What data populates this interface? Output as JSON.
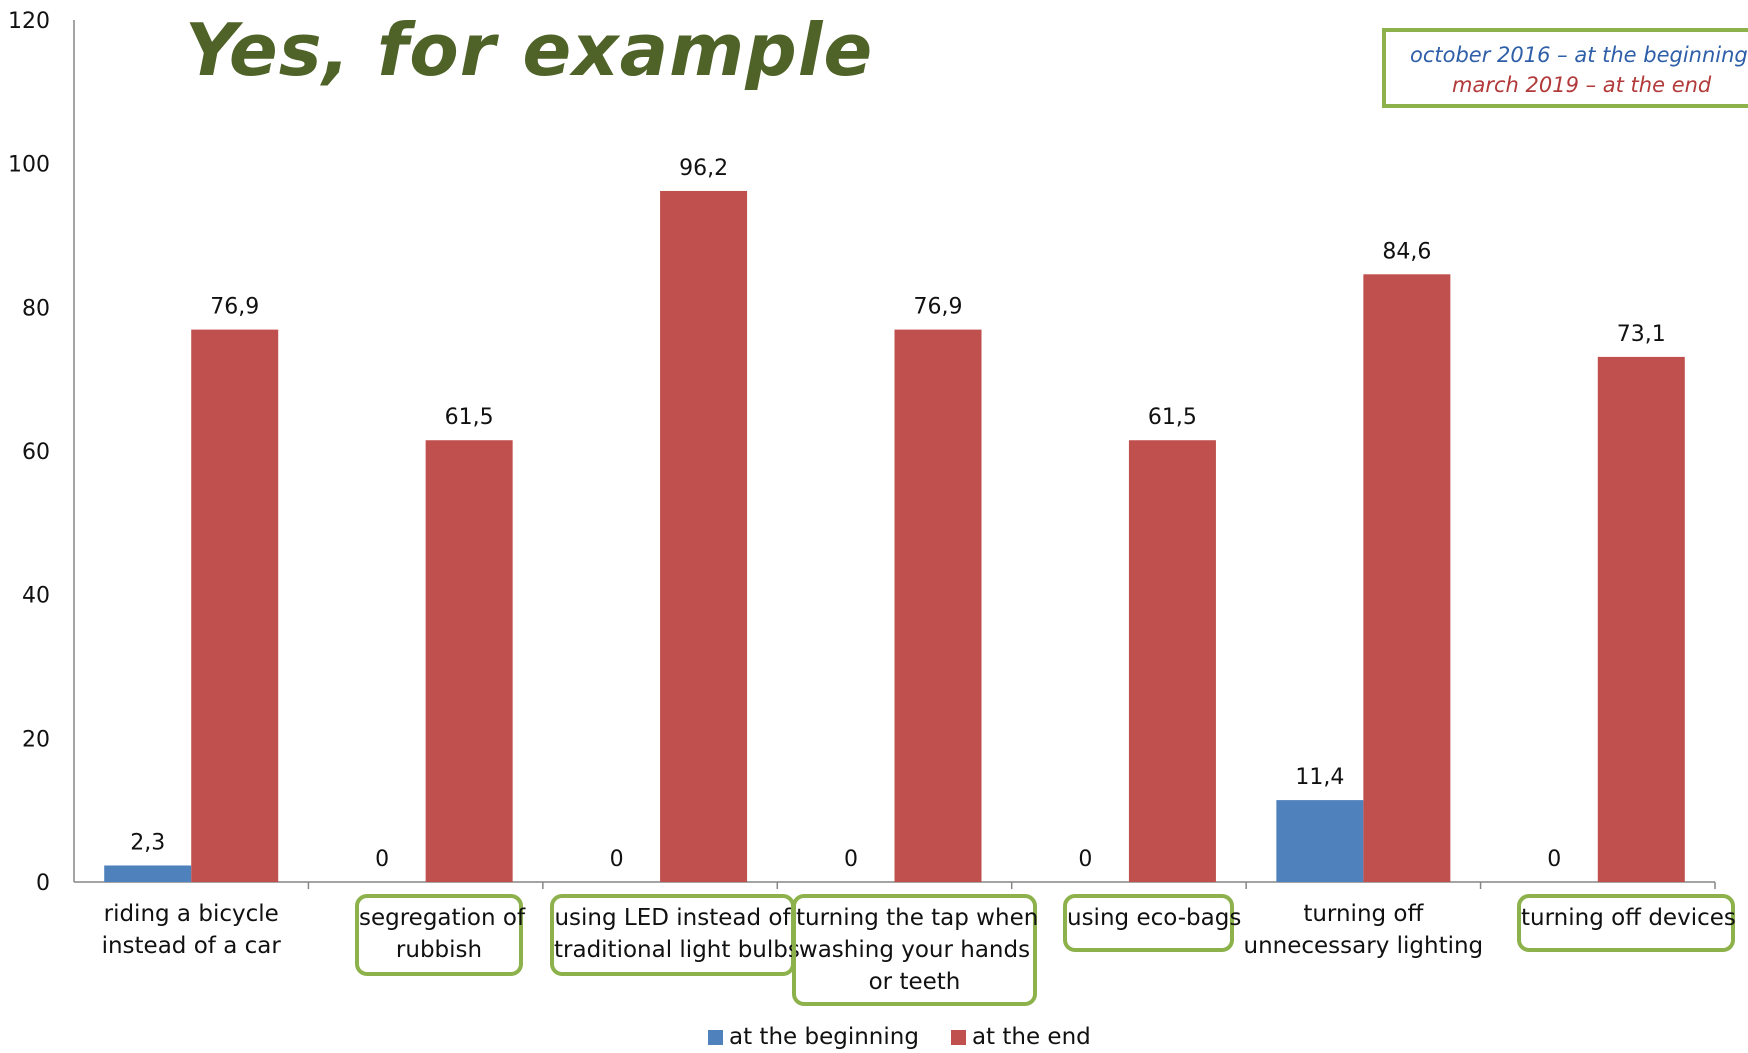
{
  "chart_data": {
    "type": "bar",
    "title": "Yes, for example",
    "categories": [
      "riding a bicycle instead of a car",
      "segregation of rubbish",
      "using LED instead of traditional light bulbs",
      "turning the tap when washing your hands or teeth",
      "using eco-bags",
      "turning off unnecessary lighting",
      "turning off devices"
    ],
    "series": [
      {
        "name": "at the beginning",
        "color": "#4f81bd",
        "values": [
          2.3,
          0,
          0,
          0,
          0,
          11.4,
          0
        ],
        "labels": [
          "2,3",
          "0",
          "0",
          "0",
          "0",
          "11,4",
          "0"
        ]
      },
      {
        "name": "at the end",
        "color": "#c0504d",
        "values": [
          76.9,
          61.5,
          96.2,
          76.9,
          61.5,
          84.6,
          73.1
        ],
        "labels": [
          "76,9",
          "61,5",
          "96,2",
          "76,9",
          "61,5",
          "84,6",
          "73,1"
        ]
      }
    ],
    "ylim": [
      0,
      120
    ],
    "yticks": [
      "0",
      "20",
      "40",
      "60",
      "80",
      "100",
      "120"
    ],
    "legend": "bottom",
    "grid": false,
    "highlighted_categories": [
      1,
      2,
      3,
      4,
      6
    ]
  },
  "note": {
    "line1": "october 2016 – at the beginning",
    "line2": "march 2019 – at the end"
  },
  "category_lines": [
    [
      "riding a bicycle",
      "instead of a car"
    ],
    [
      "segregation of",
      "rubbish"
    ],
    [
      "using LED instead of",
      "traditional light bulbs"
    ],
    [
      "turning the tap when",
      "washing your hands",
      "or teeth"
    ],
    [
      "using eco-bags"
    ],
    [
      "turning off",
      "unnecessary lighting"
    ],
    [
      "turning off devices"
    ]
  ]
}
